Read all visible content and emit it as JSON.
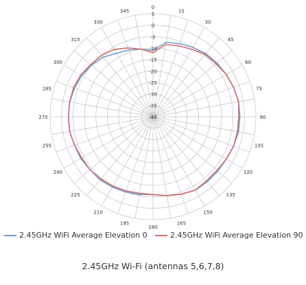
{
  "chart_data": {
    "type": "polar-line",
    "radial_axis": {
      "ticks": [
        5,
        0,
        -5,
        -10,
        -15,
        -20,
        -25,
        -30,
        -35,
        -40
      ],
      "range": [
        -40,
        5
      ]
    },
    "angular_axis": {
      "ticks": [
        0,
        15,
        30,
        45,
        60,
        75,
        90,
        105,
        120,
        135,
        150,
        165,
        180,
        195,
        210,
        225,
        240,
        255,
        270,
        285,
        300,
        315,
        330,
        345
      ],
      "direction": "clockwise",
      "zero_position": "top"
    },
    "grid": true,
    "legend_position": "bottom",
    "series": [
      {
        "name": "2.45GHz WiFi Average Elevation 0",
        "color": "#6f9fcf",
        "theta": [
          0,
          10,
          20,
          30,
          40,
          50,
          60,
          70,
          80,
          90,
          100,
          110,
          120,
          130,
          140,
          150,
          160,
          170,
          180,
          190,
          200,
          210,
          220,
          230,
          240,
          250,
          260,
          270,
          280,
          290,
          300,
          310,
          320,
          330,
          340,
          350
        ],
        "r": [
          -11,
          -7,
          -6,
          -5,
          -4,
          -3.5,
          -3,
          -2.5,
          -2,
          -2,
          -2,
          -2.5,
          -3,
          -3,
          -3,
          -3,
          -4,
          -5,
          -6,
          -5.5,
          -5,
          -4.5,
          -4,
          -4,
          -3.5,
          -3.5,
          -3,
          -3,
          -3,
          -3.5,
          -4,
          -5,
          -6,
          -8,
          -9,
          -10
        ]
      },
      {
        "name": "2.45GHz WiFi Average Elevation 90",
        "color": "#d46a6a",
        "theta": [
          0,
          10,
          20,
          30,
          40,
          50,
          60,
          70,
          80,
          90,
          100,
          110,
          120,
          130,
          140,
          150,
          160,
          170,
          180,
          190,
          200,
          210,
          220,
          230,
          240,
          250,
          260,
          270,
          280,
          290,
          300,
          310,
          320,
          330,
          340,
          350
        ],
        "r": [
          -12,
          -8,
          -7,
          -6,
          -4.5,
          -4,
          -3,
          -2.5,
          -2,
          -2.5,
          -2.5,
          -2.5,
          -3,
          -3.5,
          -3.5,
          -3,
          -4,
          -5,
          -6,
          -6,
          -5.5,
          -5,
          -4.5,
          -4,
          -4,
          -3.5,
          -3,
          -3,
          -3,
          -3,
          -3.5,
          -4.5,
          -5,
          -6,
          -8,
          -10
        ]
      }
    ]
  },
  "caption": "2.45GHz Wi-Fi (antennas 5,6,7,8)"
}
